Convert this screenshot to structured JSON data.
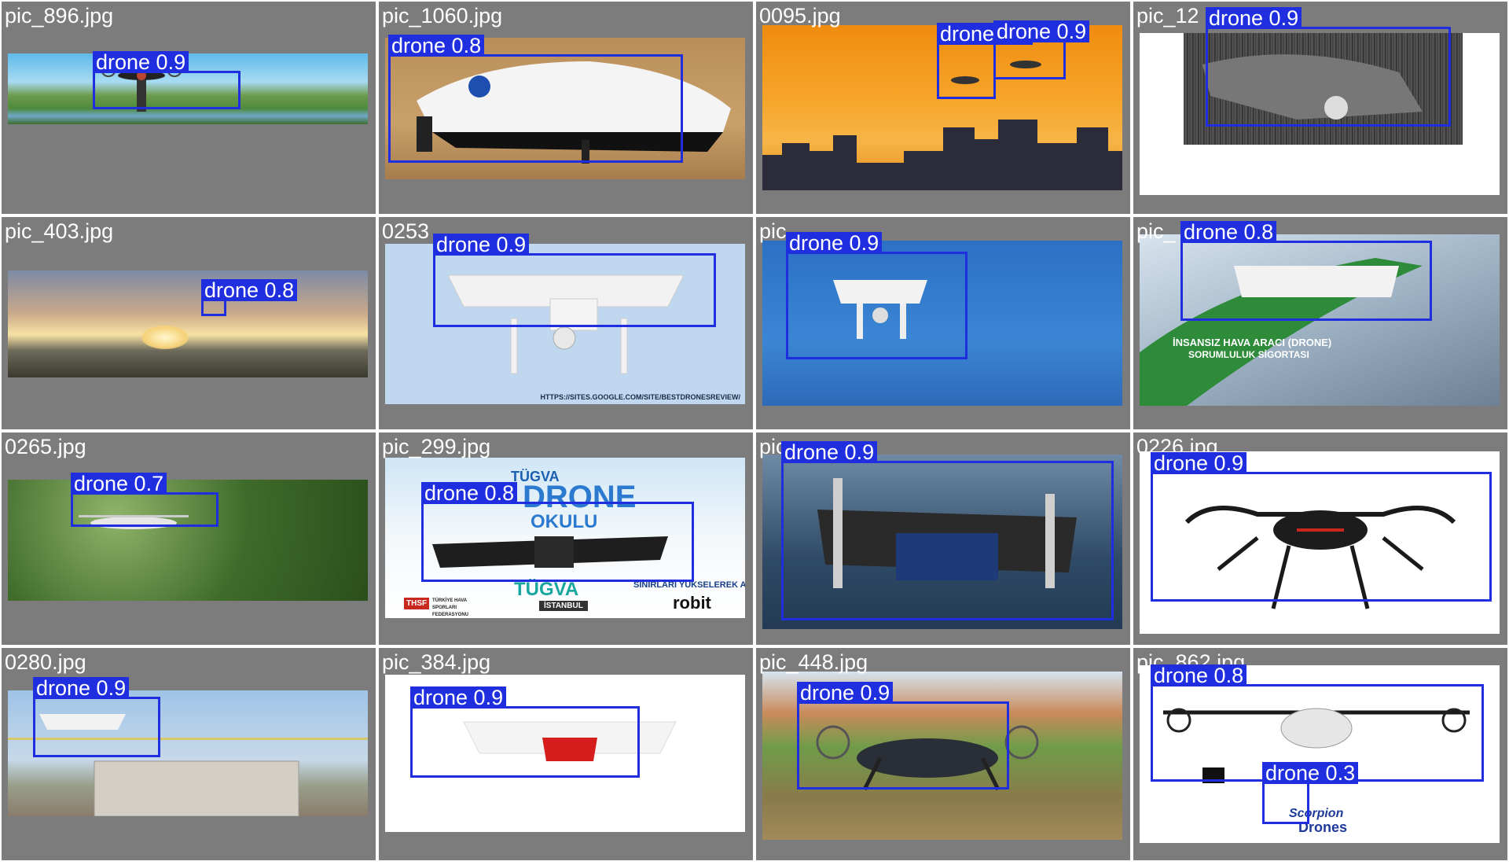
{
  "colors": {
    "box": "#1f2fe0",
    "tile_bg": "#7c7c7c",
    "label_text": "#ffffff"
  },
  "tiles": [
    {
      "filename": "pic_896.jpg",
      "detections": [
        {
          "label": "drone 0.9"
        }
      ]
    },
    {
      "filename": "pic_1060.jpg",
      "detections": [
        {
          "label": "drone 0.8"
        }
      ]
    },
    {
      "filename": "0095.jpg",
      "detections": [
        {
          "label": "drone 0.9"
        },
        {
          "label": "drone 0.9"
        }
      ]
    },
    {
      "filename": "pic_12",
      "detections": [
        {
          "label": "drone 0.9"
        }
      ]
    },
    {
      "filename": "pic_403.jpg",
      "detections": [
        {
          "label": "drone 0.8"
        }
      ]
    },
    {
      "filename": "0253",
      "detections": [
        {
          "label": "drone 0.9"
        }
      ],
      "caption": "HTTPS://SITES.GOOGLE.COM/SITE/BESTDRONESREVIEW/"
    },
    {
      "filename": "pic",
      "detections": [
        {
          "label": "drone 0.9"
        }
      ]
    },
    {
      "filename": "pic_",
      "detections": [
        {
          "label": "drone 0.8"
        }
      ],
      "caption_line1": "İNSANSIZ HAVA ARACI (DRONE)",
      "caption_line2": "SORUMLULUK SİGORTASI"
    },
    {
      "filename": "0265.jpg",
      "detections": [
        {
          "label": "drone 0.7"
        }
      ]
    },
    {
      "filename": "pic_299.jpg",
      "detections": [
        {
          "label": "drone 0.8"
        }
      ],
      "brand_top": "TÜGVA",
      "brand_main": "DRONE",
      "brand_sub": "OKULU",
      "brand_bottom": "TÜGVA",
      "slogan": "SINIRLARI YÜKSELEREK AŞ",
      "fed_logo": "THSF",
      "fed_name": "TÜRKİYE HAVA SPORLARI FEDERASYONU",
      "city": "İSTANBUL",
      "sponsor": "robit"
    },
    {
      "filename": "pic",
      "detections": [
        {
          "label": "drone 0.9"
        }
      ]
    },
    {
      "filename": "0226.jpg",
      "detections": [
        {
          "label": "drone 0.9"
        }
      ]
    },
    {
      "filename": "0280.jpg",
      "detections": [
        {
          "label": "drone 0.9"
        }
      ]
    },
    {
      "filename": "pic_384.jpg",
      "detections": [
        {
          "label": "drone 0.9"
        }
      ]
    },
    {
      "filename": "pic_448.jpg",
      "detections": [
        {
          "label": "drone 0.9"
        }
      ]
    },
    {
      "filename": "pic_862.jpg",
      "detections": [
        {
          "label": "drone 0.8"
        },
        {
          "label": "drone 0.3"
        }
      ],
      "logo_line1": "Scorpion",
      "logo_line2": "Drones"
    }
  ]
}
